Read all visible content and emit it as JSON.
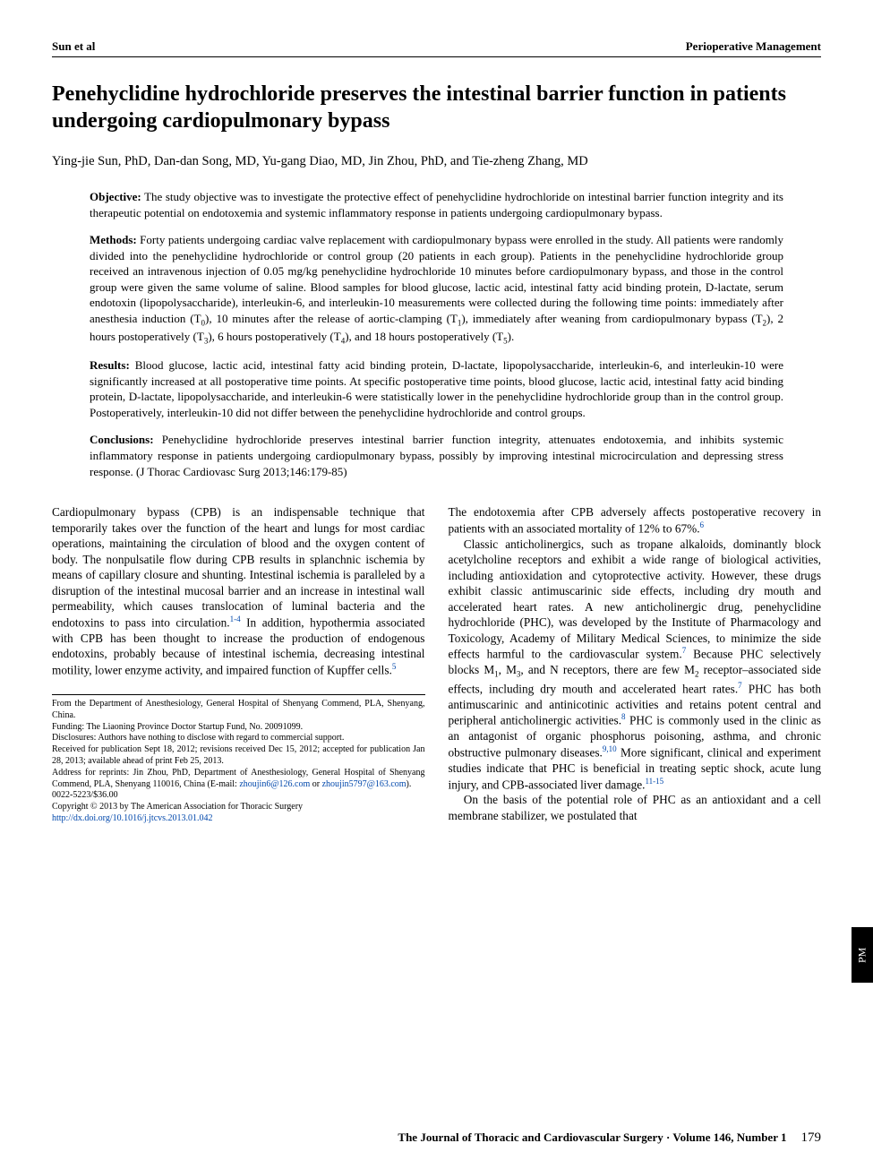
{
  "header": {
    "left": "Sun et al",
    "right": "Perioperative Management"
  },
  "title": "Penehyclidine hydrochloride preserves the intestinal barrier function in patients undergoing cardiopulmonary bypass",
  "authors": "Ying-jie Sun, PhD, Dan-dan Song, MD, Yu-gang Diao, MD, Jin Zhou, PhD, and Tie-zheng Zhang, MD",
  "abstract": {
    "objective": {
      "label": "Objective:",
      "text": " The study objective was to investigate the protective effect of penehyclidine hydrochloride on intestinal barrier function integrity and its therapeutic potential on endotoxemia and systemic inflammatory response in patients undergoing cardiopulmonary bypass."
    },
    "methods": {
      "label": "Methods:",
      "text_a": " Forty patients undergoing cardiac valve replacement with cardiopulmonary bypass were enrolled in the study. All patients were randomly divided into the penehyclidine hydrochloride or control group (20 patients in each group). Patients in the penehyclidine hydrochloride group received an intravenous injection of 0.05 mg/kg penehyclidine hydrochloride 10 minutes before cardiopulmonary bypass, and those in the control group were given the same volume of saline. Blood samples for blood glucose, lactic acid, intestinal fatty acid binding protein, D-lactate, serum endotoxin (lipopolysaccharide), interleukin-6, and interleukin-10 measurements were collected during the following time points: immediately after anesthesia induction (T",
      "t0": "0",
      "text_b": "), 10 minutes after the release of aortic-clamping (T",
      "t1": "1",
      "text_c": "), immediately after weaning from cardiopulmonary bypass (T",
      "t2": "2",
      "text_d": "), 2 hours postoperatively (T",
      "t3": "3",
      "text_e": "), 6 hours postoperatively (T",
      "t4": "4",
      "text_f": "), and 18 hours postoperatively (T",
      "t5": "5",
      "text_g": ")."
    },
    "results": {
      "label": "Results:",
      "text": " Blood glucose, lactic acid, intestinal fatty acid binding protein, D-lactate, lipopolysaccharide, interleukin-6, and interleukin-10 were significantly increased at all postoperative time points. At specific postoperative time points, blood glucose, lactic acid, intestinal fatty acid binding protein, D-lactate, lipopolysaccharide, and interleukin-6 were statistically lower in the penehyclidine hydrochloride group than in the control group. Postoperatively, interleukin-10 did not differ between the penehyclidine hydrochloride and control groups."
    },
    "conclusions": {
      "label": "Conclusions:",
      "text": " Penehyclidine hydrochloride preserves intestinal barrier function integrity, attenuates endotoxemia, and inhibits systemic inflammatory response in patients undergoing cardiopulmonary bypass, possibly by improving intestinal microcirculation and depressing stress response. (J Thorac Cardiovasc Surg 2013;146:179-85)"
    }
  },
  "body": {
    "left": {
      "p1a": "Cardiopulmonary bypass (CPB) is an indispensable technique that temporarily takes over the function of the heart and lungs for most cardiac operations, maintaining the circulation of blood and the oxygen content of body. The nonpulsatile flow during CPB results in splanchnic ischemia by means of capillary closure and shunting. Intestinal ischemia is paralleled by a disruption of the intestinal mucosal barrier and an increase in intestinal wall permeability, which causes translocation of luminal bacteria and the endotoxins to pass into circulation.",
      "ref1": "1-4",
      "p1b": " In addition, hypothermia associated with CPB has been thought to increase the production of endogenous endotoxins, probably because of intestinal ischemia, decreasing intestinal motility, lower enzyme activity, and impaired function of Kupffer cells.",
      "ref2": "5"
    },
    "right": {
      "p1a": "The endotoxemia after CPB adversely affects postoperative recovery in patients with an associated mortality of 12% to 67%.",
      "ref6": "6",
      "p2a": "Classic anticholinergics, such as tropane alkaloids, dominantly block acetylcholine receptors and exhibit a wide range of biological activities, including antioxidation and cytoprotective activity. However, these drugs exhibit classic antimuscarinic side effects, including dry mouth and accelerated heart rates. A new anticholinergic drug, penehyclidine hydrochloride (PHC), was developed by the Institute of Pharmacology and Toxicology, Academy of Military Medical Sciences, to minimize the side effects harmful to the cardiovascular system.",
      "ref7a": "7",
      "p2b": " Because PHC selectively blocks M",
      "m1": "1",
      "p2c": ", M",
      "m3": "3",
      "p2d": ", and N receptors, there are few M",
      "m2": "2",
      "p2e": " receptor–associated side effects, including dry mouth and accelerated heart rates.",
      "ref7b": "7",
      "p2f": " PHC has both antimuscarinic and antinicotinic activities and retains potent central and peripheral anticholinergic activities.",
      "ref8": "8",
      "p2g": " PHC is commonly used in the clinic as an antagonist of organic phosphorus poisoning, asthma, and chronic obstructive pulmonary diseases.",
      "ref910": "9,10",
      "p2h": " More significant, clinical and experiment studies indicate that PHC is beneficial in treating septic shock, acute lung injury, and CPB-associated liver damage.",
      "ref1115": "11-15",
      "p3": "On the basis of the potential role of PHC as an antioxidant and a cell membrane stabilizer, we postulated that"
    }
  },
  "footnotes": {
    "from": "From the Department of Anesthesiology, General Hospital of Shenyang Commend, PLA, Shenyang, China.",
    "funding": "Funding: The Liaoning Province Doctor Startup Fund, No. 20091099.",
    "disclosures": "Disclosures: Authors have nothing to disclose with regard to commercial support.",
    "received": "Received for publication Sept 18, 2012; revisions received Dec 15, 2012; accepted for publication Jan 28, 2013; available ahead of print Feb 25, 2013.",
    "address_a": "Address for reprints: Jin Zhou, PhD, Department of Anesthesiology, General Hospital of Shenyang Commend, PLA, Shenyang 110016, China (E-mail: ",
    "email1": "zhoujin6@126.com",
    "address_b": " or ",
    "email2": "zhoujin5797@163.com",
    "address_c": ").",
    "issn": "0022-5223/$36.00",
    "copyright": "Copyright © 2013 by The American Association for Thoracic Surgery",
    "doi": "http://dx.doi.org/10.1016/j.jtcvs.2013.01.042"
  },
  "sidetab": "PM",
  "footer": {
    "journal": "The Journal of Thoracic and Cardiovascular Surgery · Volume 146, Number 1",
    "page": "179"
  }
}
